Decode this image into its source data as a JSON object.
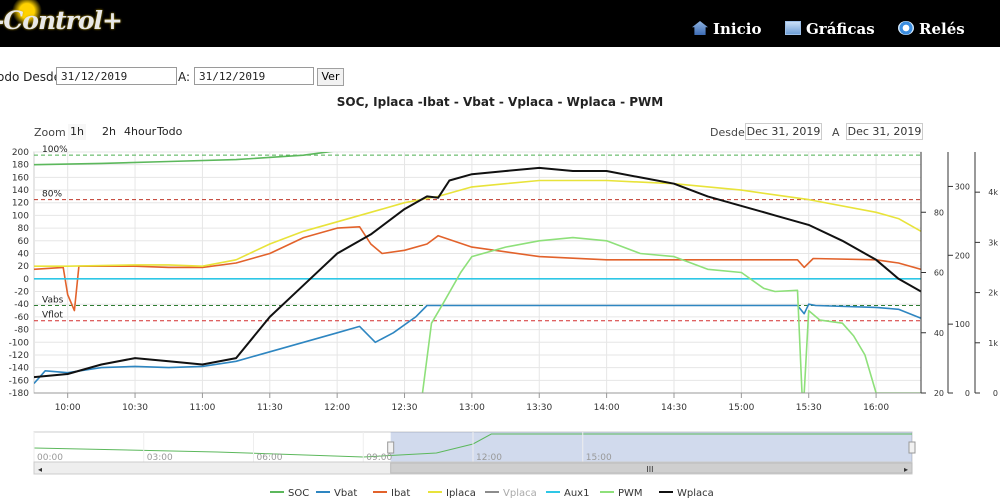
{
  "header": {
    "logo_text": "-Control+",
    "nav": [
      {
        "label": "Inicio",
        "icon": "home-icon"
      },
      {
        "label": "Gráficas",
        "icon": "chart-icon"
      },
      {
        "label": "Relés",
        "icon": "relay-icon"
      }
    ]
  },
  "date_filter": {
    "from_label": "odo Desde:",
    "from_value": "31/12/2019",
    "to_label": "A:",
    "to_value": "31/12/2019",
    "button_label": "Ver"
  },
  "toolbar": {
    "zoom_label": "Zoom",
    "zoom_buttons": [
      "1h",
      "2h",
      "4hour",
      "Todo"
    ],
    "range_from_label": "Desde",
    "range_from_value": "Dec 31, 2019",
    "range_to_label": "A",
    "range_to_value": "Dec 31, 2019"
  },
  "navigator": {
    "tick_labels": [
      "00:00",
      "03:00",
      "06:00",
      "09:00",
      "12:00",
      "15:00"
    ],
    "scroll_left_glyph": "◂",
    "scroll_right_glyph": "▸",
    "scroll_grip_glyph": "III"
  },
  "chart_data": {
    "type": "line",
    "title": "SOC, Iplaca -Ibat - Vbat - Vplaca - Wplaca - PWM",
    "x_unit": "time",
    "x_range": [
      "09:45",
      "16:20"
    ],
    "x_ticks": [
      "10:00",
      "10:30",
      "11:00",
      "11:30",
      "12:00",
      "12:30",
      "13:00",
      "13:30",
      "14:00",
      "14:30",
      "15:00",
      "15:30",
      "16:00"
    ],
    "axes": {
      "left": {
        "ylim": [
          -180,
          200
        ],
        "ticks": [
          -180,
          -160,
          -140,
          -120,
          -100,
          -80,
          -60,
          -40,
          -20,
          0,
          20,
          40,
          60,
          80,
          100,
          120,
          140,
          160,
          180,
          200
        ]
      },
      "right1": {
        "ylim": [
          20,
          100
        ],
        "ticks": [
          20,
          40,
          60,
          80
        ]
      },
      "right2": {
        "ylim": [
          0,
          350
        ],
        "ticks": [
          0,
          100,
          200,
          300
        ]
      },
      "right3": {
        "ylim": [
          0,
          4800
        ],
        "tick_labels": [
          "0",
          "1k",
          "2k",
          "3k",
          "4k"
        ],
        "tick_values": [
          0,
          1000,
          2000,
          3000,
          4000
        ]
      }
    },
    "plot_lines": [
      {
        "label": "100%",
        "value": 195,
        "color": "#4caf50",
        "style": "dashed"
      },
      {
        "label": "80%",
        "value": 125,
        "color": "#c0392b",
        "style": "dashed"
      },
      {
        "label": "Vabs",
        "value": -42,
        "color": "#2e7d32",
        "style": "dashed"
      },
      {
        "label": "Vflot",
        "value": -66,
        "color": "#d32f2f",
        "style": "dashed"
      }
    ],
    "series": [
      {
        "name": "SOC",
        "color": "#5cb85c",
        "x": [
          "09:45",
          "10:15",
          "10:45",
          "11:15",
          "11:45",
          "12:00",
          "12:15",
          "12:25",
          "16:20"
        ],
        "values": [
          180,
          182,
          185,
          188,
          195,
          202,
          206,
          208,
          208
        ]
      },
      {
        "name": "Vbat",
        "color": "#2e86c1",
        "x": [
          "09:45",
          "09:50",
          "10:00",
          "10:15",
          "10:30",
          "10:45",
          "11:00",
          "11:15",
          "11:30",
          "11:45",
          "12:00",
          "12:10",
          "12:17",
          "12:25",
          "12:35",
          "12:40",
          "13:00",
          "14:00",
          "15:00",
          "15:25",
          "15:28",
          "15:30",
          "15:33",
          "16:00",
          "16:10",
          "16:20"
        ],
        "values": [
          -165,
          -145,
          -148,
          -140,
          -138,
          -140,
          -138,
          -130,
          -115,
          -100,
          -85,
          -75,
          -100,
          -85,
          -60,
          -42,
          -42,
          -42,
          -42,
          -42,
          -55,
          -40,
          -42,
          -45,
          -48,
          -62
        ]
      },
      {
        "name": "Ibat",
        "color": "#e2622b",
        "x": [
          "09:45",
          "09:58",
          "10:00",
          "10:03",
          "10:05",
          "10:30",
          "10:45",
          "11:00",
          "11:15",
          "11:30",
          "11:45",
          "12:00",
          "12:10",
          "12:15",
          "12:20",
          "12:30",
          "12:40",
          "12:45",
          "13:00",
          "13:30",
          "14:00",
          "14:30",
          "15:00",
          "15:25",
          "15:28",
          "15:32",
          "16:00",
          "16:10",
          "16:20"
        ],
        "values": [
          15,
          18,
          -25,
          -50,
          20,
          20,
          18,
          18,
          25,
          40,
          65,
          80,
          82,
          55,
          40,
          45,
          55,
          68,
          50,
          35,
          30,
          30,
          30,
          30,
          18,
          32,
          30,
          25,
          15
        ]
      },
      {
        "name": "Iplaca",
        "color": "#e8e33a",
        "x": [
          "09:45",
          "10:00",
          "10:30",
          "10:45",
          "11:00",
          "11:15",
          "11:30",
          "11:45",
          "12:00",
          "12:15",
          "12:30",
          "12:45",
          "13:00",
          "13:15",
          "13:30",
          "14:00",
          "14:30",
          "15:00",
          "15:30",
          "16:00",
          "16:10",
          "16:20"
        ],
        "values": [
          20,
          20,
          22,
          22,
          20,
          30,
          55,
          75,
          90,
          105,
          120,
          130,
          145,
          150,
          155,
          155,
          150,
          140,
          125,
          105,
          95,
          75
        ]
      },
      {
        "name": "Vplaca",
        "color": "#8c8c8c",
        "x": [],
        "values": []
      },
      {
        "name": "Aux1",
        "color": "#2ec7e6",
        "x": [
          "09:45",
          "16:20"
        ],
        "values": [
          0,
          0
        ]
      },
      {
        "name": "PWM",
        "color": "#8ee07a",
        "x": [
          "12:38",
          "12:42",
          "12:47",
          "12:55",
          "13:00",
          "13:15",
          "13:30",
          "13:45",
          "14:00",
          "14:15",
          "14:30",
          "14:45",
          "15:00",
          "15:10",
          "15:15",
          "15:25",
          "15:27",
          "15:28",
          "15:30",
          "15:35",
          "15:45",
          "15:50",
          "15:55",
          "16:00",
          "16:05",
          "16:20"
        ],
        "values": [
          -180,
          -70,
          -40,
          10,
          35,
          50,
          60,
          65,
          60,
          40,
          35,
          15,
          10,
          -15,
          -20,
          -18,
          -180,
          -180,
          -50,
          -65,
          -70,
          -90,
          -120,
          -180,
          -180,
          -180
        ]
      },
      {
        "name": "Wplaca",
        "color": "#111111",
        "x": [
          "09:45",
          "10:00",
          "10:15",
          "10:30",
          "10:45",
          "11:00",
          "11:15",
          "11:30",
          "11:45",
          "12:00",
          "12:15",
          "12:30",
          "12:40",
          "12:45",
          "12:50",
          "13:00",
          "13:15",
          "13:30",
          "13:45",
          "14:00",
          "14:15",
          "14:30",
          "14:45",
          "15:00",
          "15:15",
          "15:30",
          "15:45",
          "16:00",
          "16:10",
          "16:20"
        ],
        "values": [
          -155,
          -150,
          -135,
          -125,
          -130,
          -135,
          -125,
          -60,
          -10,
          40,
          70,
          110,
          130,
          128,
          155,
          165,
          170,
          175,
          170,
          170,
          160,
          150,
          130,
          115,
          100,
          85,
          60,
          30,
          0,
          -20
        ]
      }
    ],
    "legend": {
      "placement": "bottom-center",
      "entries": [
        "SOC",
        "Vbat",
        "Ibat",
        "Iplaca",
        "Vplaca",
        "Aux1",
        "PWM",
        "Wplaca"
      ]
    },
    "grid": true
  }
}
